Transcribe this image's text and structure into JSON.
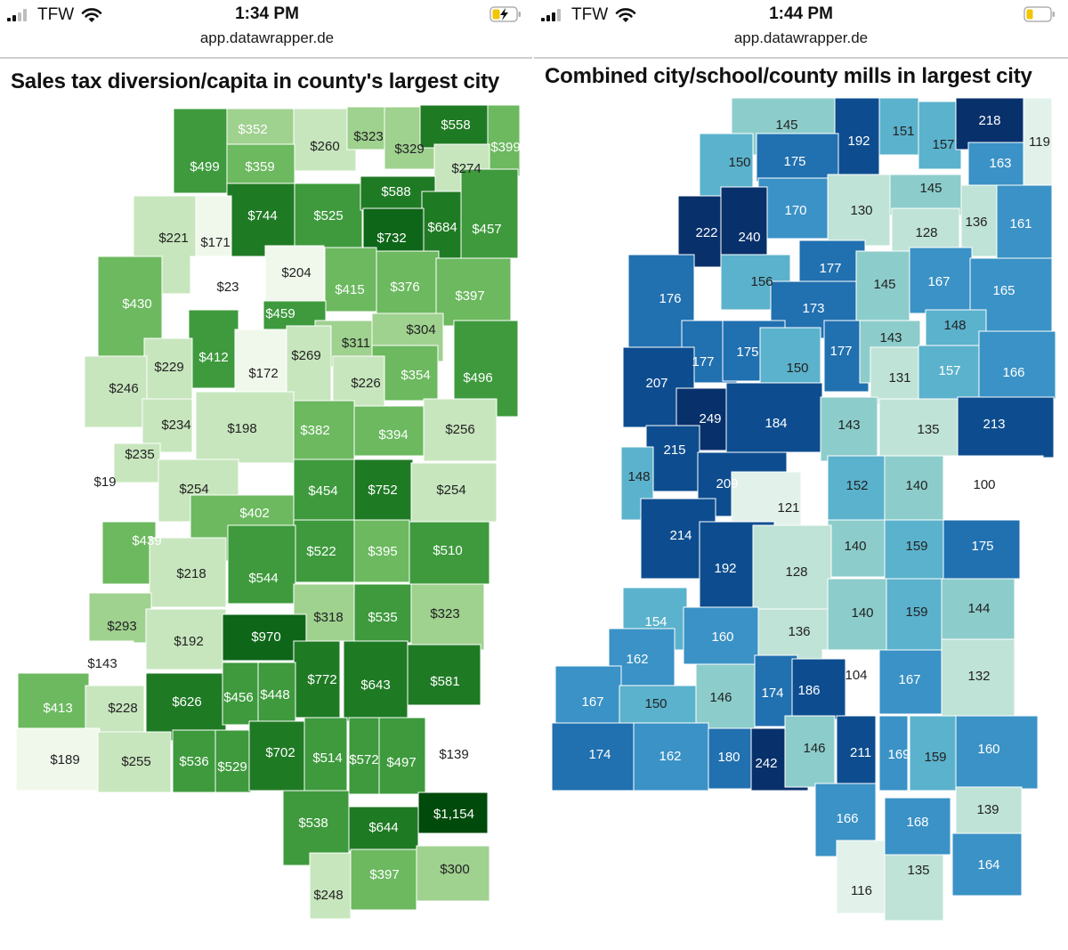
{
  "left": {
    "status": {
      "carrier": "TFW",
      "time": "1:34 PM",
      "battery": "charging"
    },
    "url": "app.datawrapper.de",
    "title": "Sales tax diversion/capita in county's largest city",
    "colors": {
      "c0": "#ffffff",
      "c1": "#f0f8ec",
      "c2": "#c7e6bd",
      "c3": "#9fd18f",
      "c4": "#6cb95f",
      "c5": "#3e9a3d",
      "c6": "#1f7a24",
      "c7": "#0e6618",
      "c8": "#004a0b",
      "border": "#ffffff"
    },
    "cells": [
      {
        "label": "$352",
        "c": 3,
        "t": "light"
      },
      {
        "label": "$260",
        "c": 2,
        "t": "dark"
      },
      {
        "label": "$323",
        "c": 3,
        "t": "dark"
      },
      {
        "label": "$329",
        "c": 3,
        "t": "dark"
      },
      {
        "label": "$558",
        "c": 6,
        "t": "light"
      },
      {
        "label": "$399",
        "c": 4,
        "t": "light"
      },
      {
        "label": "$499",
        "c": 5,
        "t": "light"
      },
      {
        "label": "$359",
        "c": 4,
        "t": "light"
      },
      {
        "label": "$274",
        "c": 2,
        "t": "dark"
      },
      {
        "label": "$744",
        "c": 6,
        "t": "light"
      },
      {
        "label": "$525",
        "c": 5,
        "t": "light"
      },
      {
        "label": "$588",
        "c": 6,
        "t": "light"
      },
      {
        "label": "$684",
        "c": 6,
        "t": "light"
      },
      {
        "label": "$457",
        "c": 5,
        "t": "light"
      },
      {
        "label": "$221",
        "c": 2,
        "t": "dark"
      },
      {
        "label": "$171",
        "c": 1,
        "t": "dark"
      },
      {
        "label": "$732",
        "c": 7,
        "t": "light"
      },
      {
        "label": "$23",
        "c": 0,
        "t": "dark"
      },
      {
        "label": "$204",
        "c": 1,
        "t": "dark"
      },
      {
        "label": "$415",
        "c": 4,
        "t": "light"
      },
      {
        "label": "$376",
        "c": 4,
        "t": "light"
      },
      {
        "label": "$397",
        "c": 4,
        "t": "light"
      },
      {
        "label": "$430",
        "c": 4,
        "t": "light"
      },
      {
        "label": "$459",
        "c": 5,
        "t": "light"
      },
      {
        "label": "$412",
        "c": 5,
        "t": "light"
      },
      {
        "label": "$311",
        "c": 3,
        "t": "dark"
      },
      {
        "label": "$304",
        "c": 3,
        "t": "dark"
      },
      {
        "label": "$229",
        "c": 2,
        "t": "dark"
      },
      {
        "label": "$172",
        "c": 1,
        "t": "dark"
      },
      {
        "label": "$269",
        "c": 2,
        "t": "dark"
      },
      {
        "label": "$354",
        "c": 4,
        "t": "light"
      },
      {
        "label": "$496",
        "c": 5,
        "t": "light"
      },
      {
        "label": "$246",
        "c": 2,
        "t": "dark"
      },
      {
        "label": "$226",
        "c": 2,
        "t": "dark"
      },
      {
        "label": "$234",
        "c": 2,
        "t": "dark"
      },
      {
        "label": "$198",
        "c": 2,
        "t": "dark"
      },
      {
        "label": "$382",
        "c": 4,
        "t": "light"
      },
      {
        "label": "$394",
        "c": 4,
        "t": "light"
      },
      {
        "label": "$256",
        "c": 2,
        "t": "dark"
      },
      {
        "label": "$235",
        "c": 2,
        "t": "dark"
      },
      {
        "label": "$19",
        "c": 0,
        "t": "dark"
      },
      {
        "label": "$254",
        "c": 2,
        "t": "dark"
      },
      {
        "label": "$454",
        "c": 5,
        "t": "light"
      },
      {
        "label": "$752",
        "c": 6,
        "t": "light"
      },
      {
        "label": "$254",
        "c": 2,
        "t": "dark"
      },
      {
        "label": "$402",
        "c": 4,
        "t": "light"
      },
      {
        "label": "$439",
        "c": 4,
        "t": "light"
      },
      {
        "label": "$522",
        "c": 5,
        "t": "light"
      },
      {
        "label": "$395",
        "c": 4,
        "t": "light"
      },
      {
        "label": "$510",
        "c": 5,
        "t": "light"
      },
      {
        "label": "$218",
        "c": 2,
        "t": "dark"
      },
      {
        "label": "$544",
        "c": 5,
        "t": "light"
      },
      {
        "label": "$293",
        "c": 3,
        "t": "dark"
      },
      {
        "label": "$318",
        "c": 3,
        "t": "dark"
      },
      {
        "label": "$535",
        "c": 5,
        "t": "light"
      },
      {
        "label": "$323",
        "c": 3,
        "t": "dark"
      },
      {
        "label": "$192",
        "c": 2,
        "t": "dark"
      },
      {
        "label": "$970",
        "c": 7,
        "t": "light"
      },
      {
        "label": "$143",
        "c": 0,
        "t": "dark"
      },
      {
        "label": "$772",
        "c": 6,
        "t": "light"
      },
      {
        "label": "$643",
        "c": 6,
        "t": "light"
      },
      {
        "label": "$581",
        "c": 6,
        "t": "light"
      },
      {
        "label": "$413",
        "c": 4,
        "t": "light"
      },
      {
        "label": "$228",
        "c": 2,
        "t": "dark"
      },
      {
        "label": "$626",
        "c": 6,
        "t": "light"
      },
      {
        "label": "$456",
        "c": 5,
        "t": "light"
      },
      {
        "label": "$448",
        "c": 5,
        "t": "light"
      },
      {
        "label": "$189",
        "c": 1,
        "t": "dark"
      },
      {
        "label": "$255",
        "c": 2,
        "t": "dark"
      },
      {
        "label": "$536",
        "c": 5,
        "t": "light"
      },
      {
        "label": "$529",
        "c": 5,
        "t": "light"
      },
      {
        "label": "$702",
        "c": 6,
        "t": "light"
      },
      {
        "label": "$514",
        "c": 5,
        "t": "light"
      },
      {
        "label": "$572",
        "c": 5,
        "t": "light"
      },
      {
        "label": "$497",
        "c": 5,
        "t": "light"
      },
      {
        "label": "$139",
        "c": 0,
        "t": "dark"
      },
      {
        "label": "$538",
        "c": 5,
        "t": "light"
      },
      {
        "label": "$644",
        "c": 6,
        "t": "light"
      },
      {
        "label": "$1,154",
        "c": 8,
        "t": "light"
      },
      {
        "label": "$248",
        "c": 2,
        "t": "dark"
      },
      {
        "label": "$397",
        "c": 4,
        "t": "light"
      },
      {
        "label": "$300",
        "c": 3,
        "t": "dark"
      }
    ]
  },
  "right": {
    "status": {
      "carrier": "TFW",
      "time": "1:44 PM",
      "battery": "low"
    },
    "url": "app.datawrapper.de",
    "title": "Combined city/school/county mills in largest city",
    "colors": {
      "c0": "#ffffff",
      "c1": "#e2f2ea",
      "c2": "#bfe3d6",
      "c3": "#8ccdcb",
      "c4": "#5bb2cc",
      "c5": "#3a92c6",
      "c6": "#2170b0",
      "c7": "#0d4d8f",
      "c8": "#08306b",
      "border": "#ffffff"
    },
    "cells": [
      {
        "label": "145",
        "c": 3,
        "t": "dark"
      },
      {
        "label": "192",
        "c": 7,
        "t": "light"
      },
      {
        "label": "151",
        "c": 4,
        "t": "dark"
      },
      {
        "label": "157",
        "c": 4,
        "t": "dark"
      },
      {
        "label": "218",
        "c": 8,
        "t": "light"
      },
      {
        "label": "119",
        "c": 1,
        "t": "dark"
      },
      {
        "label": "150",
        "c": 4,
        "t": "dark"
      },
      {
        "label": "175",
        "c": 6,
        "t": "light"
      },
      {
        "label": "163",
        "c": 5,
        "t": "light"
      },
      {
        "label": "170",
        "c": 5,
        "t": "light"
      },
      {
        "label": "130",
        "c": 2,
        "t": "dark"
      },
      {
        "label": "145",
        "c": 3,
        "t": "dark"
      },
      {
        "label": "136",
        "c": 2,
        "t": "dark"
      },
      {
        "label": "161",
        "c": 5,
        "t": "light"
      },
      {
        "label": "222",
        "c": 8,
        "t": "light"
      },
      {
        "label": "240",
        "c": 8,
        "t": "light"
      },
      {
        "label": "128",
        "c": 2,
        "t": "dark"
      },
      {
        "label": "177",
        "c": 6,
        "t": "light"
      },
      {
        "label": "176",
        "c": 6,
        "t": "light"
      },
      {
        "label": "156",
        "c": 4,
        "t": "dark"
      },
      {
        "label": "145",
        "c": 3,
        "t": "dark"
      },
      {
        "label": "167",
        "c": 5,
        "t": "light"
      },
      {
        "label": "165",
        "c": 5,
        "t": "light"
      },
      {
        "label": "173",
        "c": 6,
        "t": "light"
      },
      {
        "label": "148",
        "c": 4,
        "t": "dark"
      },
      {
        "label": "177",
        "c": 6,
        "t": "light"
      },
      {
        "label": "175",
        "c": 6,
        "t": "light"
      },
      {
        "label": "150",
        "c": 4,
        "t": "dark"
      },
      {
        "label": "177",
        "c": 6,
        "t": "light"
      },
      {
        "label": "143",
        "c": 3,
        "t": "dark"
      },
      {
        "label": "207",
        "c": 7,
        "t": "light"
      },
      {
        "label": "131",
        "c": 2,
        "t": "dark"
      },
      {
        "label": "157",
        "c": 4,
        "t": "light"
      },
      {
        "label": "166",
        "c": 5,
        "t": "light"
      },
      {
        "label": "249",
        "c": 8,
        "t": "light"
      },
      {
        "label": "184",
        "c": 7,
        "t": "light"
      },
      {
        "label": "143",
        "c": 3,
        "t": "dark"
      },
      {
        "label": "135",
        "c": 2,
        "t": "dark"
      },
      {
        "label": "213",
        "c": 7,
        "t": "light"
      },
      {
        "label": "215",
        "c": 7,
        "t": "light"
      },
      {
        "label": "148",
        "c": 4,
        "t": "dark"
      },
      {
        "label": "209",
        "c": 7,
        "t": "light"
      },
      {
        "label": "152",
        "c": 4,
        "t": "dark"
      },
      {
        "label": "140",
        "c": 3,
        "t": "dark"
      },
      {
        "label": "100",
        "c": 0,
        "t": "dark"
      },
      {
        "label": "121",
        "c": 1,
        "t": "dark"
      },
      {
        "label": "214",
        "c": 7,
        "t": "light"
      },
      {
        "label": "140",
        "c": 3,
        "t": "dark"
      },
      {
        "label": "159",
        "c": 4,
        "t": "dark"
      },
      {
        "label": "175",
        "c": 6,
        "t": "light"
      },
      {
        "label": "192",
        "c": 7,
        "t": "light"
      },
      {
        "label": "128",
        "c": 2,
        "t": "dark"
      },
      {
        "label": "154",
        "c": 4,
        "t": "light"
      },
      {
        "label": "160",
        "c": 5,
        "t": "light"
      },
      {
        "label": "136",
        "c": 2,
        "t": "dark"
      },
      {
        "label": "140",
        "c": 3,
        "t": "dark"
      },
      {
        "label": "159",
        "c": 4,
        "t": "dark"
      },
      {
        "label": "144",
        "c": 3,
        "t": "dark"
      },
      {
        "label": "162",
        "c": 5,
        "t": "light"
      },
      {
        "label": "104",
        "c": 0,
        "t": "dark"
      },
      {
        "label": "167",
        "c": 5,
        "t": "light"
      },
      {
        "label": "132",
        "c": 2,
        "t": "dark"
      },
      {
        "label": "167",
        "c": 5,
        "t": "light"
      },
      {
        "label": "150",
        "c": 4,
        "t": "dark"
      },
      {
        "label": "146",
        "c": 3,
        "t": "dark"
      },
      {
        "label": "174",
        "c": 6,
        "t": "light"
      },
      {
        "label": "186",
        "c": 7,
        "t": "light"
      },
      {
        "label": "174",
        "c": 6,
        "t": "light"
      },
      {
        "label": "162",
        "c": 5,
        "t": "light"
      },
      {
        "label": "180",
        "c": 6,
        "t": "light"
      },
      {
        "label": "242",
        "c": 8,
        "t": "light"
      },
      {
        "label": "146",
        "c": 3,
        "t": "dark"
      },
      {
        "label": "211",
        "c": 7,
        "t": "light"
      },
      {
        "label": "169",
        "c": 5,
        "t": "light"
      },
      {
        "label": "159",
        "c": 4,
        "t": "dark"
      },
      {
        "label": "160",
        "c": 5,
        "t": "light"
      },
      {
        "label": "166",
        "c": 5,
        "t": "light"
      },
      {
        "label": "168",
        "c": 5,
        "t": "light"
      },
      {
        "label": "139",
        "c": 2,
        "t": "dark"
      },
      {
        "label": "116",
        "c": 1,
        "t": "dark"
      },
      {
        "label": "135",
        "c": 2,
        "t": "dark"
      },
      {
        "label": "164",
        "c": 5,
        "t": "light"
      }
    ]
  }
}
